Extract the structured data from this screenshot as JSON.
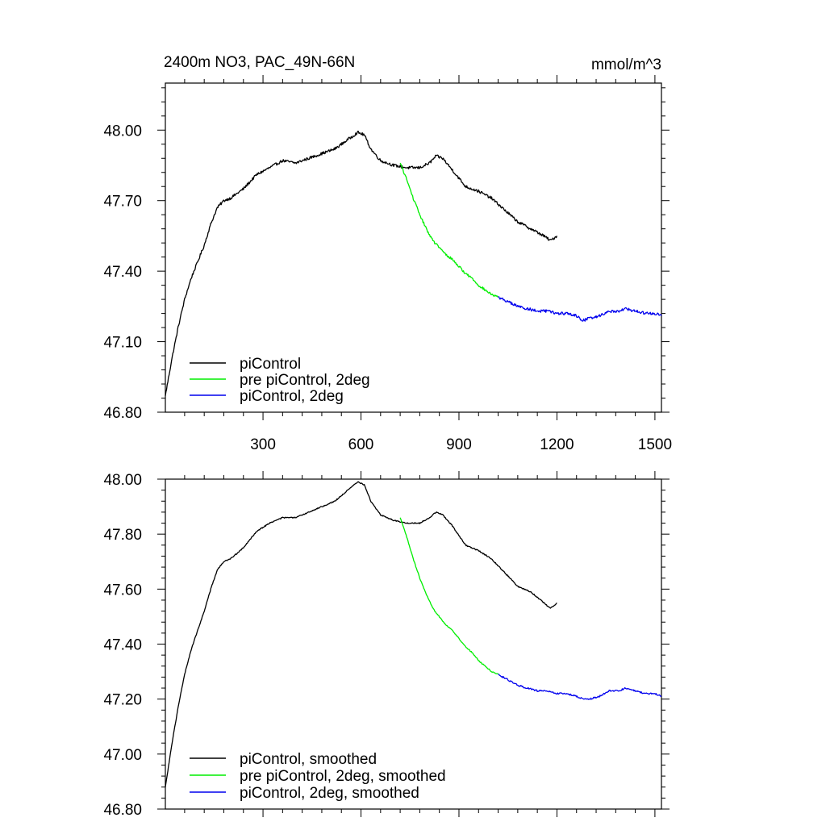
{
  "figure": {
    "title_left": "2400m NO3, PAC_49N-66N",
    "title_right": "mmol/m^3"
  },
  "colors": {
    "piControl": "#000000",
    "pre_piControl_2deg": "#00ee00",
    "piControl_2deg": "#0000ee"
  },
  "chart_data": [
    {
      "type": "line",
      "panel": "raw",
      "title": "2400m NO3, PAC_49N-66N",
      "units": "mmol/m^3",
      "xlim": [
        1,
        1520
      ],
      "ylim": [
        46.8,
        48.2
      ],
      "x_ticks": [
        300,
        600,
        900,
        1200,
        1500
      ],
      "x_tick_labels": [
        "300",
        "600",
        "900",
        "1200",
        "1500"
      ],
      "y_ticks": [
        46.8,
        47.1,
        47.4,
        47.7,
        48.0
      ],
      "y_tick_labels": [
        "46.80",
        "47.10",
        "47.40",
        "47.70",
        "48.00"
      ],
      "grid": false,
      "legend_position": "bottom-left",
      "series": [
        {
          "name": "piControl",
          "color_key": "piControl",
          "x": [
            1,
            20,
            40,
            60,
            80,
            100,
            120,
            140,
            160,
            180,
            200,
            240,
            280,
            320,
            360,
            400,
            440,
            480,
            520,
            560,
            590,
            610,
            630,
            660,
            700,
            740,
            780,
            810,
            830,
            850,
            880,
            920,
            960,
            1000,
            1040,
            1080,
            1120,
            1160,
            1180,
            1200
          ],
          "y": [
            46.87,
            47.02,
            47.16,
            47.28,
            47.37,
            47.44,
            47.51,
            47.6,
            47.67,
            47.7,
            47.71,
            47.75,
            47.81,
            47.84,
            47.87,
            47.86,
            47.88,
            47.9,
            47.92,
            47.96,
            47.99,
            47.98,
            47.92,
            47.87,
            47.85,
            47.84,
            47.84,
            47.86,
            47.89,
            47.88,
            47.83,
            47.76,
            47.74,
            47.71,
            47.66,
            47.61,
            47.58,
            47.55,
            47.53,
            47.55
          ],
          "noise": 0.006
        },
        {
          "name": "pre piControl, 2deg",
          "color_key": "pre_piControl_2deg",
          "x": [
            720,
            740,
            760,
            780,
            800,
            820,
            840,
            860,
            880,
            900,
            920,
            940,
            960,
            980,
            1000,
            1020
          ],
          "y": [
            47.86,
            47.79,
            47.71,
            47.64,
            47.58,
            47.53,
            47.5,
            47.47,
            47.45,
            47.42,
            47.39,
            47.37,
            47.34,
            47.32,
            47.3,
            47.29
          ],
          "noise": 0.005
        },
        {
          "name": "piControl, 2deg",
          "color_key": "piControl_2deg",
          "x": [
            1020,
            1050,
            1080,
            1110,
            1140,
            1170,
            1200,
            1230,
            1260,
            1280,
            1300,
            1330,
            1360,
            1390,
            1410,
            1440,
            1470,
            1500,
            1520
          ],
          "y": [
            47.29,
            47.27,
            47.25,
            47.24,
            47.23,
            47.23,
            47.22,
            47.22,
            47.21,
            47.19,
            47.2,
            47.21,
            47.23,
            47.23,
            47.24,
            47.23,
            47.22,
            47.22,
            47.21
          ],
          "noise": 0.006
        }
      ],
      "legend": [
        "piControl",
        "pre piControl, 2deg",
        "piControl, 2deg"
      ]
    },
    {
      "type": "line",
      "panel": "smoothed",
      "xlim": [
        1,
        1520
      ],
      "ylim": [
        46.8,
        48.0
      ],
      "x_ticks": [
        300,
        600,
        900,
        1200,
        1500
      ],
      "y_ticks": [
        46.8,
        47.0,
        47.2,
        47.4,
        47.6,
        47.8,
        48.0
      ],
      "y_tick_labels": [
        "46.80",
        "47.00",
        "47.20",
        "47.40",
        "47.60",
        "47.80",
        "48.00"
      ],
      "grid": false,
      "legend_position": "bottom-left",
      "series": [
        {
          "name": "piControl, smoothed",
          "color_key": "piControl",
          "x": [
            1,
            20,
            40,
            60,
            80,
            100,
            120,
            140,
            160,
            180,
            200,
            240,
            280,
            320,
            360,
            400,
            440,
            480,
            520,
            560,
            590,
            610,
            630,
            660,
            700,
            740,
            780,
            810,
            830,
            850,
            880,
            920,
            960,
            1000,
            1040,
            1080,
            1120,
            1160,
            1180,
            1200
          ],
          "y": [
            46.88,
            47.03,
            47.17,
            47.29,
            47.38,
            47.45,
            47.52,
            47.6,
            47.67,
            47.7,
            47.71,
            47.75,
            47.81,
            47.84,
            47.86,
            47.86,
            47.88,
            47.9,
            47.92,
            47.96,
            47.99,
            47.98,
            47.92,
            47.87,
            47.85,
            47.84,
            47.84,
            47.86,
            47.88,
            47.87,
            47.83,
            47.76,
            47.74,
            47.71,
            47.66,
            47.61,
            47.59,
            47.55,
            47.53,
            47.55
          ],
          "noise": 0.002
        },
        {
          "name": "pre piControl, 2deg, smoothed",
          "color_key": "pre_piControl_2deg",
          "x": [
            720,
            740,
            760,
            780,
            800,
            820,
            840,
            860,
            880,
            900,
            920,
            940,
            960,
            980,
            1000,
            1020
          ],
          "y": [
            47.86,
            47.79,
            47.71,
            47.64,
            47.58,
            47.53,
            47.5,
            47.47,
            47.45,
            47.42,
            47.39,
            47.37,
            47.34,
            47.32,
            47.3,
            47.29
          ],
          "noise": 0.002
        },
        {
          "name": "piControl, 2deg, smoothed",
          "color_key": "piControl_2deg",
          "x": [
            1020,
            1050,
            1080,
            1110,
            1140,
            1170,
            1200,
            1230,
            1260,
            1280,
            1300,
            1330,
            1360,
            1390,
            1410,
            1440,
            1470,
            1500,
            1520
          ],
          "y": [
            47.29,
            47.27,
            47.25,
            47.24,
            47.23,
            47.23,
            47.22,
            47.22,
            47.21,
            47.2,
            47.2,
            47.21,
            47.23,
            47.23,
            47.24,
            47.23,
            47.22,
            47.22,
            47.21
          ],
          "noise": 0.003
        }
      ],
      "legend": [
        "piControl, smoothed",
        "pre piControl, 2deg, smoothed",
        "piControl, 2deg, smoothed"
      ]
    }
  ]
}
